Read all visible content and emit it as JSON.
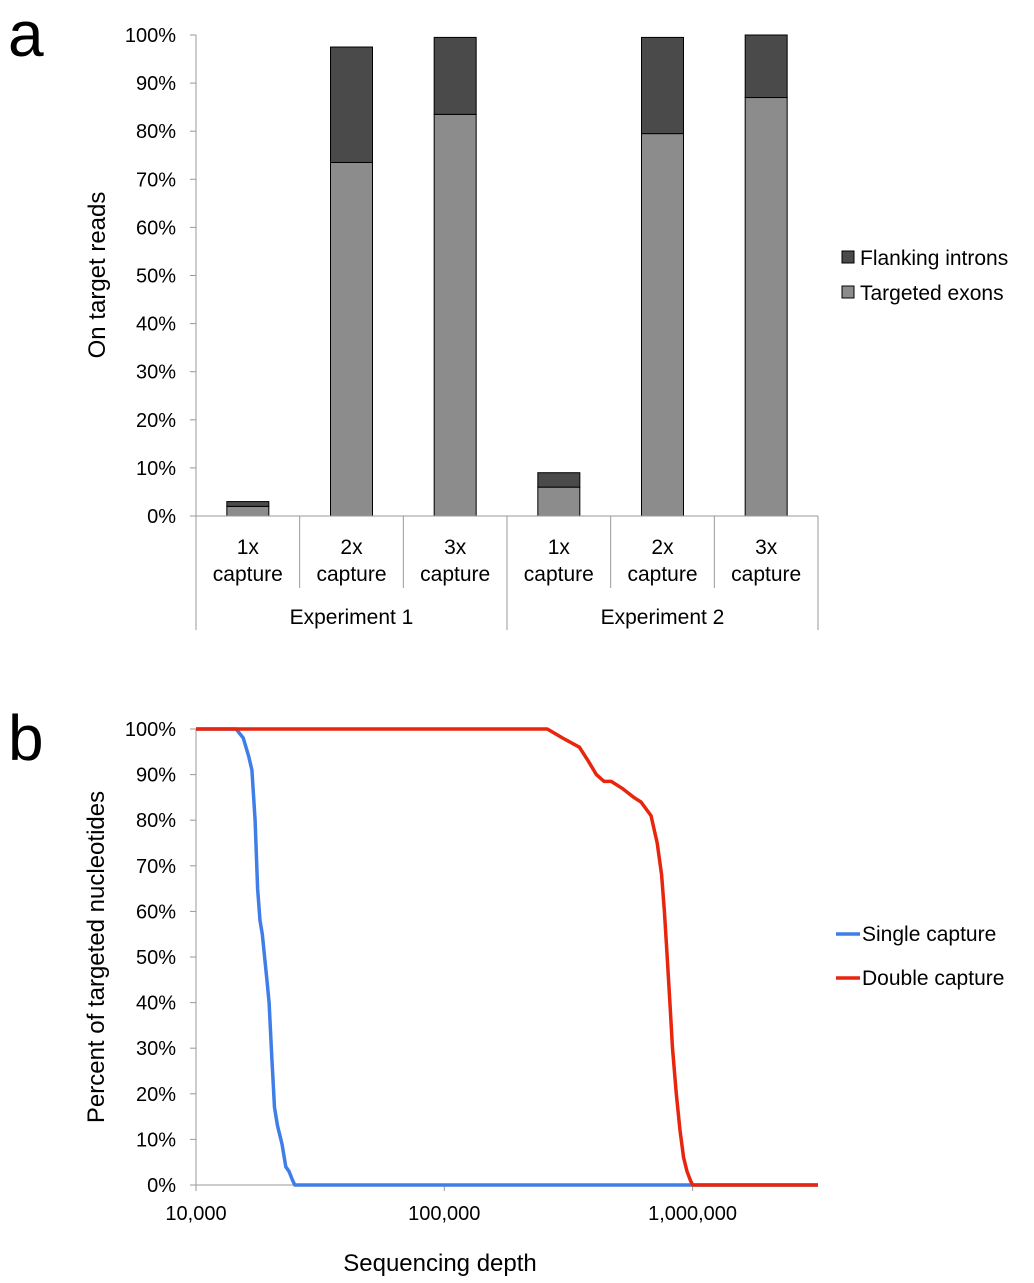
{
  "chart_data": [
    {
      "panel_label": "a",
      "type": "bar",
      "stacked": true,
      "ylabel": "On target reads",
      "xlabel": "",
      "ylim": [
        0,
        100
      ],
      "yticks": [
        "0%",
        "10%",
        "20%",
        "30%",
        "40%",
        "50%",
        "60%",
        "70%",
        "80%",
        "90%",
        "100%"
      ],
      "categories": [
        {
          "line1": "1x",
          "line2": "capture",
          "group": "Experiment 1"
        },
        {
          "line1": "2x",
          "line2": "capture",
          "group": "Experiment 1"
        },
        {
          "line1": "3x",
          "line2": "capture",
          "group": "Experiment 1"
        },
        {
          "line1": "1x",
          "line2": "capture",
          "group": "Experiment 2"
        },
        {
          "line1": "2x",
          "line2": "capture",
          "group": "Experiment 2"
        },
        {
          "line1": "3x",
          "line2": "capture",
          "group": "Experiment 2"
        }
      ],
      "groups": [
        "Experiment 1",
        "Experiment 2"
      ],
      "series": [
        {
          "name": "Targeted exons",
          "color": "#8c8c8c",
          "values": [
            2,
            73.5,
            83.5,
            6,
            79.5,
            87
          ]
        },
        {
          "name": "Flanking introns",
          "color": "#4a4a4a",
          "values": [
            1,
            24,
            16,
            3,
            20,
            13
          ]
        }
      ],
      "legend_order": [
        "Flanking introns",
        "Targeted exons"
      ],
      "legend_position": "right",
      "grid": false
    },
    {
      "panel_label": "b",
      "type": "line",
      "xscale": "log",
      "xlabel": "Sequencing depth",
      "ylabel": "Percent of targeted nucleotides",
      "xlim": [
        10000,
        3200000
      ],
      "ylim": [
        0,
        100
      ],
      "xticks": [
        {
          "value": 10000,
          "label": "10,000"
        },
        {
          "value": 100000,
          "label": "100,000"
        },
        {
          "value": 1000000,
          "label": "1,000,000"
        }
      ],
      "yticks": [
        "0%",
        "10%",
        "20%",
        "30%",
        "40%",
        "50%",
        "60%",
        "70%",
        "80%",
        "90%",
        "100%"
      ],
      "series": [
        {
          "name": "Single capture",
          "color": "#3f7ee8",
          "x": [
            10000,
            14500,
            15500,
            16300,
            16800,
            17300,
            17700,
            18100,
            18500,
            18900,
            19300,
            19700,
            20200,
            20700,
            21300,
            22200,
            23000,
            23700,
            24500,
            25000,
            3200000
          ],
          "y": [
            100,
            100,
            98,
            94,
            91,
            80,
            65,
            58,
            55,
            50,
            45,
            40,
            28,
            17,
            13,
            9,
            4,
            3,
            1,
            0,
            0
          ]
        },
        {
          "name": "Double capture",
          "color": "#e8250d",
          "x": [
            10000,
            260000,
            300000,
            350000,
            380000,
            410000,
            440000,
            470000,
            520000,
            580000,
            620000,
            680000,
            720000,
            750000,
            770000,
            790000,
            810000,
            830000,
            860000,
            890000,
            920000,
            950000,
            980000,
            1000000,
            3200000
          ],
          "y": [
            100,
            100,
            98,
            96,
            93,
            90,
            88.5,
            88.5,
            87,
            85,
            84,
            81,
            75,
            68,
            60,
            50,
            40,
            30,
            20,
            12,
            6,
            3,
            1,
            0,
            0
          ]
        }
      ],
      "legend_position": "right",
      "grid": false
    }
  ]
}
